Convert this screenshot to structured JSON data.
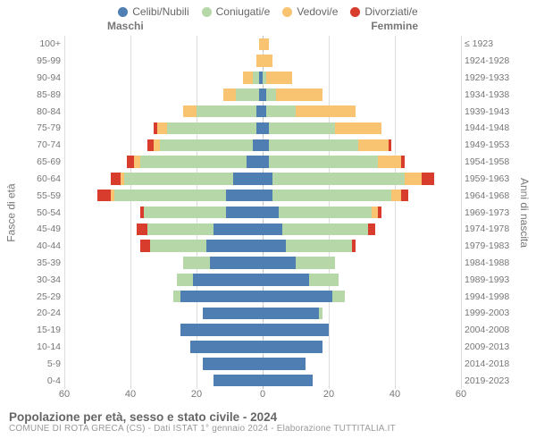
{
  "chart": {
    "type": "population-pyramid",
    "legend": [
      {
        "label": "Celibi/Nubili",
        "color": "#4f7eb2"
      },
      {
        "label": "Coniugati/e",
        "color": "#b6d7a8"
      },
      {
        "label": "Vedovi/e",
        "color": "#f8c471"
      },
      {
        "label": "Divorziati/e",
        "color": "#d73c2c"
      }
    ],
    "headers": {
      "male": "Maschi",
      "female": "Femmine"
    },
    "axis_left_title": "Fasce di età",
    "axis_right_title": "Anni di nascita",
    "xlim": 60,
    "xticks": [
      60,
      40,
      20,
      0,
      20,
      40,
      60
    ],
    "xtick_positions_pct": [
      0,
      16.67,
      33.33,
      50,
      66.67,
      83.33,
      100
    ],
    "grid_color": "#dddddd",
    "center_line_color": "#bbbbbb",
    "background_color": "#ffffff",
    "bar_height_ratio": 0.72,
    "font": {
      "axis_labels_pt": 10.5,
      "legend_pt": 12,
      "title_pt": 13.5,
      "subtitle_pt": 10,
      "color": "#777777"
    },
    "rows": [
      {
        "age": "100+",
        "birth": "≤ 1923",
        "m": {
          "single": 0,
          "married": 0,
          "widowed": 1,
          "divorced": 0
        },
        "f": {
          "single": 0,
          "married": 0,
          "widowed": 2,
          "divorced": 0
        }
      },
      {
        "age": "95-99",
        "birth": "1924-1928",
        "m": {
          "single": 0,
          "married": 0,
          "widowed": 2,
          "divorced": 0
        },
        "f": {
          "single": 0,
          "married": 0,
          "widowed": 3,
          "divorced": 0
        }
      },
      {
        "age": "90-94",
        "birth": "1929-1933",
        "m": {
          "single": 1,
          "married": 2,
          "widowed": 3,
          "divorced": 0
        },
        "f": {
          "single": 0,
          "married": 1,
          "widowed": 8,
          "divorced": 0
        }
      },
      {
        "age": "85-89",
        "birth": "1934-1938",
        "m": {
          "single": 1,
          "married": 7,
          "widowed": 4,
          "divorced": 0
        },
        "f": {
          "single": 1,
          "married": 3,
          "widowed": 14,
          "divorced": 0
        }
      },
      {
        "age": "80-84",
        "birth": "1939-1943",
        "m": {
          "single": 2,
          "married": 18,
          "widowed": 4,
          "divorced": 0
        },
        "f": {
          "single": 1,
          "married": 9,
          "widowed": 18,
          "divorced": 0
        }
      },
      {
        "age": "75-79",
        "birth": "1944-1948",
        "m": {
          "single": 2,
          "married": 27,
          "widowed": 3,
          "divorced": 1
        },
        "f": {
          "single": 2,
          "married": 20,
          "widowed": 14,
          "divorced": 0
        }
      },
      {
        "age": "70-74",
        "birth": "1949-1953",
        "m": {
          "single": 3,
          "married": 28,
          "widowed": 2,
          "divorced": 2
        },
        "f": {
          "single": 2,
          "married": 27,
          "widowed": 9,
          "divorced": 1
        }
      },
      {
        "age": "65-69",
        "birth": "1954-1958",
        "m": {
          "single": 5,
          "married": 32,
          "widowed": 2,
          "divorced": 2
        },
        "f": {
          "single": 2,
          "married": 33,
          "widowed": 7,
          "divorced": 1
        }
      },
      {
        "age": "60-64",
        "birth": "1959-1963",
        "m": {
          "single": 9,
          "married": 33,
          "widowed": 1,
          "divorced": 3
        },
        "f": {
          "single": 3,
          "married": 40,
          "widowed": 5,
          "divorced": 4
        }
      },
      {
        "age": "55-59",
        "birth": "1964-1968",
        "m": {
          "single": 11,
          "married": 34,
          "widowed": 1,
          "divorced": 4
        },
        "f": {
          "single": 3,
          "married": 36,
          "widowed": 3,
          "divorced": 2
        }
      },
      {
        "age": "50-54",
        "birth": "1969-1973",
        "m": {
          "single": 11,
          "married": 25,
          "widowed": 0,
          "divorced": 1
        },
        "f": {
          "single": 5,
          "married": 28,
          "widowed": 2,
          "divorced": 1
        }
      },
      {
        "age": "45-49",
        "birth": "1974-1978",
        "m": {
          "single": 15,
          "married": 20,
          "widowed": 0,
          "divorced": 3
        },
        "f": {
          "single": 6,
          "married": 26,
          "widowed": 0,
          "divorced": 2
        }
      },
      {
        "age": "40-44",
        "birth": "1979-1983",
        "m": {
          "single": 17,
          "married": 17,
          "widowed": 0,
          "divorced": 3
        },
        "f": {
          "single": 7,
          "married": 20,
          "widowed": 0,
          "divorced": 1
        }
      },
      {
        "age": "35-39",
        "birth": "1984-1988",
        "m": {
          "single": 16,
          "married": 8,
          "widowed": 0,
          "divorced": 0
        },
        "f": {
          "single": 10,
          "married": 12,
          "widowed": 0,
          "divorced": 0
        }
      },
      {
        "age": "30-34",
        "birth": "1989-1993",
        "m": {
          "single": 21,
          "married": 5,
          "widowed": 0,
          "divorced": 0
        },
        "f": {
          "single": 14,
          "married": 9,
          "widowed": 0,
          "divorced": 0
        }
      },
      {
        "age": "25-29",
        "birth": "1994-1998",
        "m": {
          "single": 25,
          "married": 2,
          "widowed": 0,
          "divorced": 0
        },
        "f": {
          "single": 21,
          "married": 4,
          "widowed": 0,
          "divorced": 0
        }
      },
      {
        "age": "20-24",
        "birth": "1999-2003",
        "m": {
          "single": 18,
          "married": 0,
          "widowed": 0,
          "divorced": 0
        },
        "f": {
          "single": 17,
          "married": 1,
          "widowed": 0,
          "divorced": 0
        }
      },
      {
        "age": "15-19",
        "birth": "2004-2008",
        "m": {
          "single": 25,
          "married": 0,
          "widowed": 0,
          "divorced": 0
        },
        "f": {
          "single": 20,
          "married": 0,
          "widowed": 0,
          "divorced": 0
        }
      },
      {
        "age": "10-14",
        "birth": "2009-2013",
        "m": {
          "single": 22,
          "married": 0,
          "widowed": 0,
          "divorced": 0
        },
        "f": {
          "single": 18,
          "married": 0,
          "widowed": 0,
          "divorced": 0
        }
      },
      {
        "age": "5-9",
        "birth": "2014-2018",
        "m": {
          "single": 18,
          "married": 0,
          "widowed": 0,
          "divorced": 0
        },
        "f": {
          "single": 13,
          "married": 0,
          "widowed": 0,
          "divorced": 0
        }
      },
      {
        "age": "0-4",
        "birth": "2019-2023",
        "m": {
          "single": 15,
          "married": 0,
          "widowed": 0,
          "divorced": 0
        },
        "f": {
          "single": 15,
          "married": 0,
          "widowed": 0,
          "divorced": 0
        }
      }
    ]
  },
  "footer": {
    "title": "Popolazione per età, sesso e stato civile - 2024",
    "subtitle": "COMUNE DI ROTA GRECA (CS) - Dati ISTAT 1° gennaio 2024 - Elaborazione TUTTITALIA.IT"
  }
}
